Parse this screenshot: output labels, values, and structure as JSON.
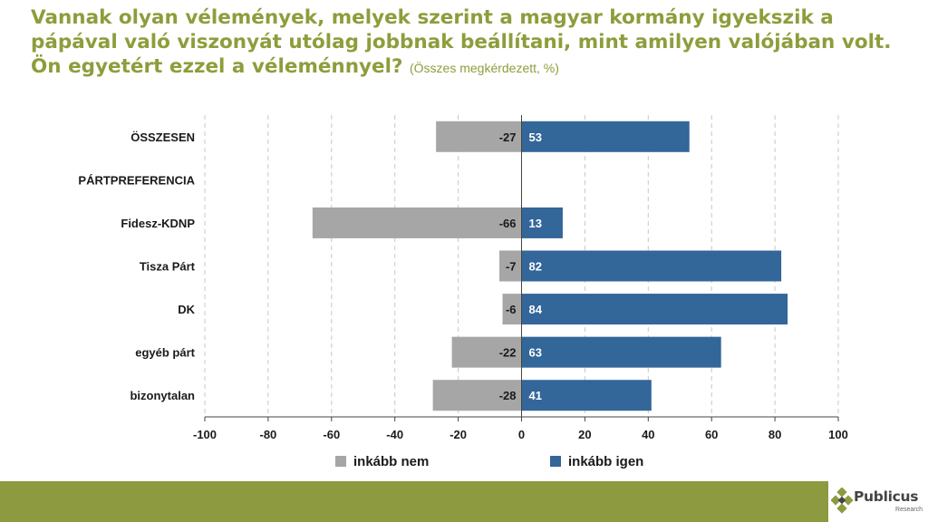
{
  "title": "Vannak olyan vélemények, melyek szerint a magyar kormány igyekszik a pápával való viszonyát utólag jobbnak beállítani, mint amilyen valójában volt. Ön egyetért ezzel a véleménnyel?",
  "subtitle": "(Összes megkérdezett, %)",
  "colors": {
    "title": "#8e9d3b",
    "no": "#a6a6a6",
    "yes": "#336699",
    "footer": "#8d9a3f"
  },
  "chart_data": {
    "type": "bar",
    "orientation": "horizontal-diverging",
    "categories": [
      "ÖSSZESEN",
      "PÁRTPREFERENCIA",
      "Fidesz-KDNP",
      "Tisza Párt",
      "DK",
      "egyéb párt",
      "bizonytalan"
    ],
    "series": [
      {
        "name": "inkább nem",
        "color": "#a6a6a6",
        "values": [
          -27,
          null,
          -66,
          -7,
          -6,
          -22,
          -28
        ]
      },
      {
        "name": "inkább igen",
        "color": "#336699",
        "values": [
          53,
          null,
          13,
          82,
          84,
          63,
          41
        ]
      }
    ],
    "xlim": [
      -100,
      100
    ],
    "xticks": [
      -100,
      -80,
      -60,
      -40,
      -20,
      0,
      20,
      40,
      60,
      80,
      100
    ],
    "grid": true,
    "legend": "bottom-center"
  },
  "logo": {
    "name": "Publicus",
    "sub": "Research"
  }
}
